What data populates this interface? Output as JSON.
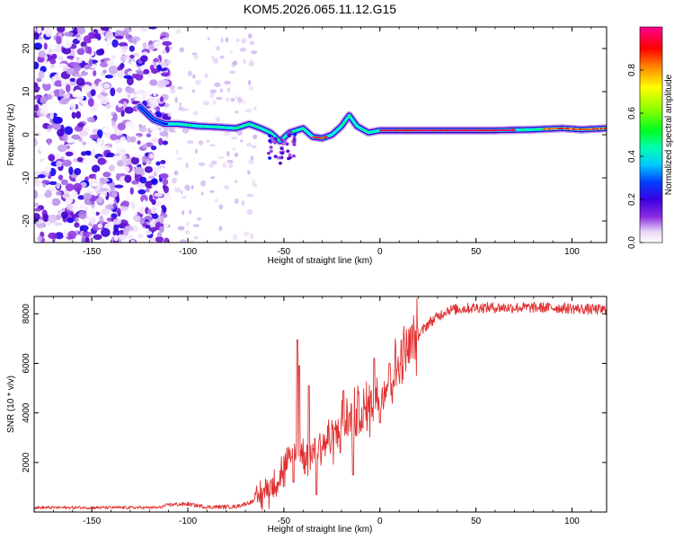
{
  "figure_title": "KOM5.2026.065.11.12.G15",
  "colors": {
    "snr_line": "#e03030",
    "frame": "#000000"
  },
  "chart_data": [
    {
      "type": "heatmap",
      "title": "KOM5.2026.065.11.12.G15",
      "xlabel": "Height of straight line (km)",
      "ylabel": "Frequency (Hz)",
      "xlim": [
        -180,
        118
      ],
      "ylim": [
        -25,
        25
      ],
      "xticks": [
        -150,
        -100,
        -50,
        0,
        50,
        100
      ],
      "yticks": [
        -20,
        -10,
        0,
        10,
        20
      ],
      "colorbar": {
        "label": "Normalized spectral amplitude",
        "range": [
          0,
          1
        ],
        "ticks": [
          0,
          0.2,
          0.4,
          0.6,
          0.8
        ],
        "colormap": [
          "#ffffff",
          "#e9d6f7",
          "#b58be8",
          "#8a2be2",
          "#4b00c8",
          "#0000ff",
          "#00a0ff",
          "#00ffff",
          "#00ff80",
          "#00ff00",
          "#a0ff00",
          "#ffff00",
          "#ff8000",
          "#ff0000",
          "#ff0060",
          "#ff0090"
        ]
      },
      "ridge": [
        {
          "x": -125,
          "f": 6.5
        },
        {
          "x": -118,
          "f": 3.5
        },
        {
          "x": -112,
          "f": 2.5
        },
        {
          "x": -105,
          "f": 2.5
        },
        {
          "x": -95,
          "f": 2.0
        },
        {
          "x": -85,
          "f": 1.8
        },
        {
          "x": -75,
          "f": 1.5
        },
        {
          "x": -68,
          "f": 2.5
        },
        {
          "x": -62,
          "f": 1.5
        },
        {
          "x": -57,
          "f": 0.5
        },
        {
          "x": -52,
          "f": -1.5
        },
        {
          "x": -47,
          "f": 0.5
        },
        {
          "x": -40,
          "f": 1.5
        },
        {
          "x": -35,
          "f": -0.5
        },
        {
          "x": -30,
          "f": -0.8
        },
        {
          "x": -25,
          "f": 0.0
        },
        {
          "x": -20,
          "f": 2.0
        },
        {
          "x": -16,
          "f": 4.5
        },
        {
          "x": -12,
          "f": 2.0
        },
        {
          "x": -6,
          "f": 0.5
        },
        {
          "x": 0,
          "f": 1.0
        },
        {
          "x": 20,
          "f": 1.0
        },
        {
          "x": 40,
          "f": 1.0
        },
        {
          "x": 60,
          "f": 1.0
        },
        {
          "x": 80,
          "f": 1.2
        },
        {
          "x": 95,
          "f": 1.5
        },
        {
          "x": 105,
          "f": 1.2
        },
        {
          "x": 118,
          "f": 1.5
        }
      ],
      "ridge_peaks": [
        {
          "x_start": -35,
          "x_end": -28,
          "f": -0.8,
          "amplitude": 0.95
        },
        {
          "x_start": 0,
          "x_end": 70,
          "f": 1.0,
          "amplitude": 1.0
        },
        {
          "x_start": 85,
          "x_end": 118,
          "f": 1.3,
          "amplitude": 0.9
        }
      ],
      "noise_region": {
        "x_start": -180,
        "x_end": -110,
        "f_range": [
          -25,
          25
        ],
        "amplitude": 0.3
      }
    },
    {
      "type": "line",
      "xlabel": "Height of straight line (km)",
      "ylabel": "SNR (10 * v/v)",
      "xlim": [
        -180,
        118
      ],
      "ylim": [
        0,
        8700
      ],
      "xticks": [
        -150,
        -100,
        -50,
        0,
        50,
        100
      ],
      "yticks": [
        2000,
        4000,
        6000,
        8000
      ],
      "envelope": [
        {
          "x": -180,
          "y": 180
        },
        {
          "x": -115,
          "y": 180
        },
        {
          "x": -110,
          "y": 300
        },
        {
          "x": -100,
          "y": 320
        },
        {
          "x": -90,
          "y": 200
        },
        {
          "x": -75,
          "y": 220
        },
        {
          "x": -65,
          "y": 450
        },
        {
          "x": -55,
          "y": 1200
        },
        {
          "x": -45,
          "y": 2200
        },
        {
          "x": -35,
          "y": 2500
        },
        {
          "x": -25,
          "y": 3000
        },
        {
          "x": -15,
          "y": 3800
        },
        {
          "x": -5,
          "y": 4300
        },
        {
          "x": 5,
          "y": 5300
        },
        {
          "x": 15,
          "y": 6600
        },
        {
          "x": 25,
          "y": 7600
        },
        {
          "x": 35,
          "y": 8150
        },
        {
          "x": 50,
          "y": 8250
        },
        {
          "x": 70,
          "y": 8250
        },
        {
          "x": 90,
          "y": 8250
        },
        {
          "x": 118,
          "y": 8150
        }
      ],
      "spikes": [
        {
          "x": -43,
          "y": 6950
        },
        {
          "x": -42,
          "y": 5900
        },
        {
          "x": -37,
          "y": 5100
        },
        {
          "x": -19,
          "y": 4900
        },
        {
          "x": -14,
          "y": 7350
        },
        {
          "x": -3,
          "y": 6200
        },
        {
          "x": 5,
          "y": 6000
        }
      ],
      "dips": [
        {
          "x": -45,
          "y": 1200
        },
        {
          "x": -33,
          "y": 700
        },
        {
          "x": -14,
          "y": 1500
        },
        {
          "x": -9,
          "y": 3400
        },
        {
          "x": 0,
          "y": 3600
        }
      ]
    }
  ]
}
